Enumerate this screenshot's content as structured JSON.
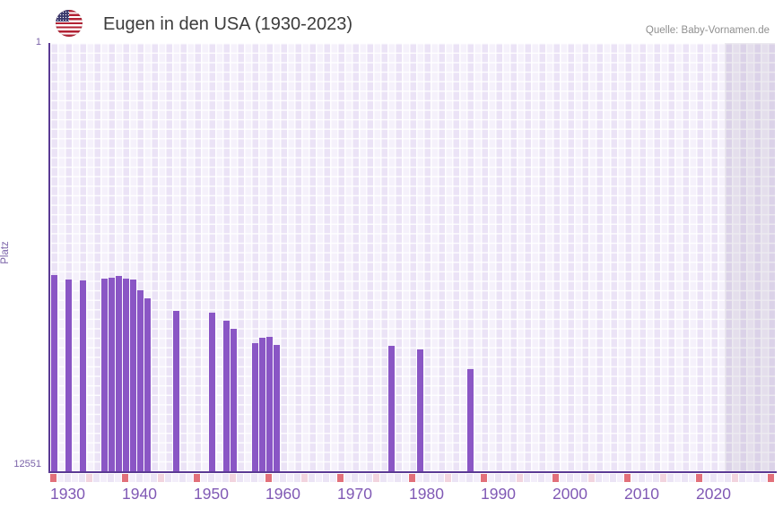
{
  "header": {
    "title": "Eugen in den USA (1930-2023)",
    "source": "Quelle: Baby-Vornamen.de",
    "flag_icon": "us-flag-icon"
  },
  "chart_data": {
    "type": "bar",
    "title": "Eugen in den USA (1930-2023)",
    "ylabel": "Platz",
    "xlabel": "",
    "grid": true,
    "y_axis": {
      "top_label": "1",
      "bottom_label": "12551",
      "min": 1,
      "max": 12551,
      "inverted": true
    },
    "x_axis": {
      "start_year": 1930,
      "end_year": 2030,
      "data_end_year": 2023,
      "no_data_from": 2024,
      "tick_years": [
        1930,
        1940,
        1950,
        1960,
        1970,
        1980,
        1990,
        2000,
        2010,
        2020
      ]
    },
    "bars": [
      {
        "year": 1930,
        "rank": 6814
      },
      {
        "year": 1932,
        "rank": 6945
      },
      {
        "year": 1934,
        "rank": 6971
      },
      {
        "year": 1937,
        "rank": 6905
      },
      {
        "year": 1938,
        "rank": 6879
      },
      {
        "year": 1939,
        "rank": 6840
      },
      {
        "year": 1940,
        "rank": 6919
      },
      {
        "year": 1941,
        "rank": 6945
      },
      {
        "year": 1942,
        "rank": 7247
      },
      {
        "year": 1943,
        "rank": 7496
      },
      {
        "year": 1947,
        "rank": 7864
      },
      {
        "year": 1952,
        "rank": 7903
      },
      {
        "year": 1954,
        "rank": 8127
      },
      {
        "year": 1955,
        "rank": 8389
      },
      {
        "year": 1958,
        "rank": 8809
      },
      {
        "year": 1959,
        "rank": 8652
      },
      {
        "year": 1960,
        "rank": 8612
      },
      {
        "year": 1961,
        "rank": 8836
      },
      {
        "year": 1977,
        "rank": 8888
      },
      {
        "year": 1981,
        "rank": 8993
      },
      {
        "year": 1988,
        "rank": 9571
      }
    ],
    "colors": {
      "bar": "#8a56c5",
      "axis": "#5b3a94",
      "cell_light": "#f5f1fb",
      "cell_dark": "#ebe3f6",
      "future_tint": "rgba(103,90,135,0.12)",
      "ruler_even": "#ebe4f5",
      "ruler_odd": "#f3eefa",
      "ruler_decade": "#e2707a",
      "ruler_mid": "#f2d4de",
      "tick_label": "#8059b5"
    }
  }
}
